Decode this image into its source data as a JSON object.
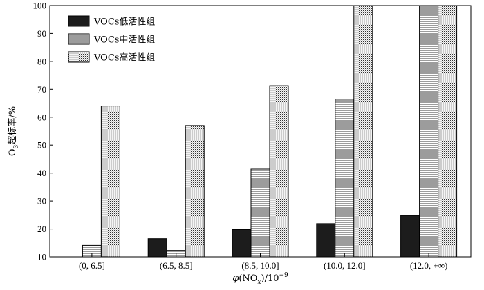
{
  "chart_data": {
    "type": "bar",
    "categories": [
      "(0, 6.5]",
      "(6.5, 8.5]",
      "(8.5, 10.0]",
      "(10.0, 12.0]",
      "(12.0, +∞)"
    ],
    "series": [
      {
        "name": "VOCs低活性组",
        "values": [
          null,
          16.5,
          19.8,
          21.9,
          24.8
        ],
        "color": "#1c1c1c",
        "pattern": "solid"
      },
      {
        "name": "VOCs中活性组",
        "values": [
          14.1,
          12.3,
          41.4,
          66.5,
          100
        ],
        "color": "#ffffff",
        "pattern": "horizontal-lines"
      },
      {
        "name": "VOCs高活性组",
        "values": [
          64.0,
          57.0,
          71.3,
          100,
          100
        ],
        "color": "#e0e0e0",
        "pattern": "crosshatch"
      }
    ],
    "ylim": [
      10,
      100
    ],
    "yticks": [
      10,
      20,
      30,
      40,
      50,
      60,
      70,
      80,
      90,
      100
    ],
    "ylabel": {
      "prefix": "O",
      "sub": "3",
      "suffix": "超标率/%"
    },
    "xlabel": {
      "phi": "φ",
      "open": "(NO",
      "sub": "x",
      "close": ")/10",
      "sup": "−9"
    },
    "legend_position": "top-left",
    "grid": false
  }
}
